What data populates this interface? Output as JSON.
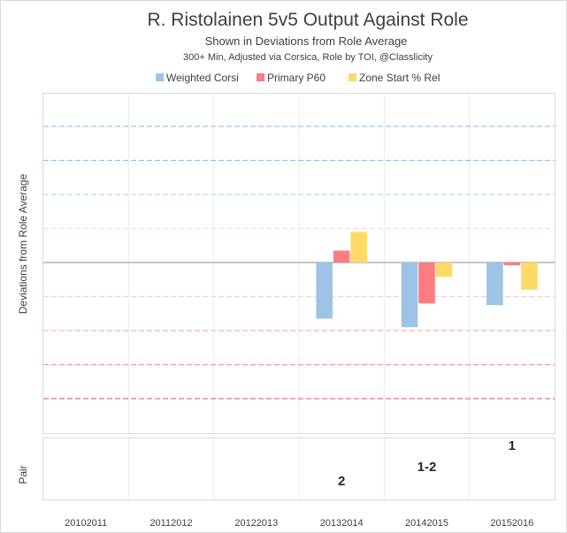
{
  "chart_data": {
    "type": "bar",
    "title": "R. Ristolainen 5v5 Output Against Role",
    "subtitle": "Shown  in Deviations from Role Average",
    "subtitle2": "300+ Min, Adjusted via Corsica, Role by TOI, @Classlicity",
    "ylabel": "Deviations from Role Average",
    "pair_label": "Pair",
    "categories": [
      "20102011",
      "20112012",
      "20122013",
      "20132014",
      "20142015",
      "20152016"
    ],
    "ylim": [
      -4,
      4
    ],
    "legend_position": "top",
    "series": [
      {
        "name": "Weighted Corsi",
        "color": "#9DC3E6",
        "values": [
          null,
          null,
          null,
          -1.65,
          -1.9,
          -1.25
        ]
      },
      {
        "name": "Primary P60",
        "color": "#FF7C80",
        "values": [
          null,
          null,
          null,
          0.35,
          -1.2,
          -0.08
        ]
      },
      {
        "name": "Zone Start % Rel",
        "color": "#FFD966",
        "values": [
          null,
          null,
          null,
          0.9,
          -0.42,
          -0.8
        ]
      }
    ],
    "pair_values": [
      "",
      "",
      "",
      "2",
      "1-2",
      "1"
    ],
    "gridlines": [
      {
        "value": 4,
        "color": "#9DC3E6"
      },
      {
        "value": 3,
        "color": "#9DC3E6"
      },
      {
        "value": 2,
        "color": "#C5DFD4"
      },
      {
        "value": 1,
        "color": "#F4D9E4"
      },
      {
        "value": -1,
        "color": "#F9D0D0"
      },
      {
        "value": -2,
        "color": "#F4B8B8"
      },
      {
        "value": -3,
        "color": "#F09A9A"
      },
      {
        "value": -4,
        "color": "#E57373"
      }
    ]
  }
}
